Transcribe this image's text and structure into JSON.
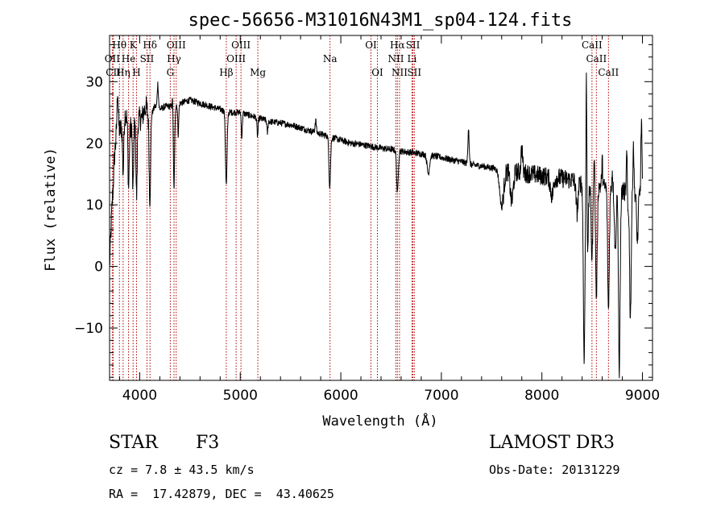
{
  "chart_data": {
    "type": "line",
    "title": "spec-56656-M31016N43M1_sp04-124.fits",
    "xlabel": "Wavelength (Å)",
    "ylabel": "Flux (relative)",
    "xlim": [
      3700,
      9100
    ],
    "ylim": [
      -18.5,
      37.5
    ],
    "x_ticks": [
      4000,
      5000,
      6000,
      7000,
      8000,
      9000
    ],
    "y_ticks": [
      -10,
      0,
      10,
      20,
      30
    ],
    "x_tick_labels": [
      "4000",
      "5000",
      "6000",
      "7000",
      "8000",
      "9000"
    ],
    "y_tick_labels": [
      "−10",
      "0",
      "10",
      "20",
      "30"
    ],
    "spectrum_nodes": [
      [
        3700,
        0
      ],
      [
        3720,
        8
      ],
      [
        3750,
        18
      ],
      [
        3780,
        24
      ],
      [
        3800,
        22
      ],
      [
        3830,
        23
      ],
      [
        3860,
        25
      ],
      [
        3900,
        22
      ],
      [
        3930,
        24
      ],
      [
        3960,
        23
      ],
      [
        3990,
        24
      ],
      [
        4020,
        24
      ],
      [
        4060,
        26
      ],
      [
        4100,
        24
      ],
      [
        4150,
        26
      ],
      [
        4200,
        25.5
      ],
      [
        4260,
        26
      ],
      [
        4330,
        26
      ],
      [
        4400,
        26.5
      ],
      [
        4500,
        27
      ],
      [
        4600,
        26.5
      ],
      [
        4700,
        26
      ],
      [
        4800,
        25.5
      ],
      [
        4900,
        25
      ],
      [
        5000,
        25
      ],
      [
        5100,
        24.5
      ],
      [
        5200,
        24
      ],
      [
        5300,
        23.5
      ],
      [
        5400,
        23.3
      ],
      [
        5500,
        23
      ],
      [
        5600,
        22.5
      ],
      [
        5700,
        22
      ],
      [
        5800,
        21.5
      ],
      [
        5900,
        21
      ],
      [
        6000,
        20.5
      ],
      [
        6100,
        20
      ],
      [
        6200,
        19.8
      ],
      [
        6300,
        19.5
      ],
      [
        6400,
        19.2
      ],
      [
        6500,
        19
      ],
      [
        6600,
        18.7
      ],
      [
        6700,
        18.5
      ],
      [
        6800,
        18.3
      ],
      [
        6900,
        18
      ],
      [
        7000,
        17.7
      ],
      [
        7100,
        17.3
      ],
      [
        7200,
        17
      ],
      [
        7300,
        16.5
      ],
      [
        7400,
        16.3
      ],
      [
        7500,
        16
      ],
      [
        7600,
        15.8
      ],
      [
        7700,
        15.5
      ],
      [
        7800,
        15.2
      ],
      [
        7900,
        15
      ],
      [
        8000,
        14.7
      ],
      [
        8100,
        14.5
      ],
      [
        8200,
        14.3
      ],
      [
        8300,
        14
      ],
      [
        8400,
        13.5
      ],
      [
        8500,
        13.2
      ],
      [
        8600,
        13
      ],
      [
        8700,
        12.5
      ],
      [
        8800,
        12.2
      ],
      [
        8900,
        12
      ],
      [
        9000,
        12
      ]
    ],
    "absorption_features": [
      [
        3835,
        6,
        8
      ],
      [
        3889,
        6,
        10
      ],
      [
        3933,
        6,
        12
      ],
      [
        3969,
        6,
        12
      ],
      [
        4101,
        7,
        14
      ],
      [
        4340,
        7,
        14
      ],
      [
        4383,
        5,
        5
      ],
      [
        4861,
        8,
        12
      ],
      [
        5015,
        5,
        4
      ],
      [
        5172,
        6,
        3
      ],
      [
        5270,
        5,
        2
      ],
      [
        5890,
        8,
        8
      ],
      [
        6563,
        8,
        7
      ],
      [
        6870,
        12,
        3
      ],
      [
        7600,
        20,
        6
      ],
      [
        7700,
        15,
        5
      ],
      [
        8100,
        15,
        3
      ],
      [
        8350,
        10,
        5
      ],
      [
        8420,
        8,
        28
      ],
      [
        8455,
        8,
        10
      ],
      [
        8498,
        8,
        12
      ],
      [
        8542,
        8,
        18
      ],
      [
        8662,
        8,
        20
      ],
      [
        8730,
        8,
        10
      ],
      [
        8770,
        8,
        30
      ],
      [
        8850,
        8,
        5
      ],
      [
        8880,
        8,
        20
      ],
      [
        8950,
        8,
        8
      ]
    ],
    "emission_spikes": [
      [
        3780,
        5,
        5
      ],
      [
        4180,
        6,
        4
      ],
      [
        4330,
        5,
        4
      ],
      [
        5750,
        6,
        2
      ],
      [
        7270,
        6,
        6
      ],
      [
        7800,
        8,
        4
      ],
      [
        8443,
        4,
        21
      ],
      [
        8520,
        5,
        6
      ],
      [
        8600,
        5,
        4
      ],
      [
        8700,
        5,
        3
      ],
      [
        8845,
        5,
        10
      ],
      [
        8910,
        5,
        8
      ],
      [
        8990,
        5,
        12
      ]
    ],
    "spectral_lines": [
      {
        "name": "Hθ",
        "wave": 3798,
        "row": 1
      },
      {
        "name": "OII",
        "wave": 3727,
        "row": 2
      },
      {
        "name": "CII",
        "wave": 3737,
        "row": 3
      },
      {
        "name": "Hη",
        "wave": 3835,
        "row": 3
      },
      {
        "name": "He",
        "wave": 3889,
        "row": 2
      },
      {
        "name": "K",
        "wave": 3934,
        "row": 1
      },
      {
        "name": "SII",
        "wave": 4072,
        "row": 2
      },
      {
        "name": "H",
        "wave": 3968,
        "row": 3
      },
      {
        "name": "Hδ",
        "wave": 4102,
        "row": 1
      },
      {
        "name": "OIII",
        "wave": 4363,
        "row": 1
      },
      {
        "name": "Hγ",
        "wave": 4341,
        "row": 2
      },
      {
        "name": "G",
        "wave": 4304,
        "row": 3
      },
      {
        "name": "OIII",
        "wave": 5007,
        "row": 1
      },
      {
        "name": "OIII",
        "wave": 4959,
        "row": 2
      },
      {
        "name": "Hβ",
        "wave": 4861,
        "row": 3
      },
      {
        "name": "Mg",
        "wave": 5175,
        "row": 3
      },
      {
        "name": "Na",
        "wave": 5893,
        "row": 2
      },
      {
        "name": "OI",
        "wave": 6300,
        "row": 1
      },
      {
        "name": "OI",
        "wave": 6364,
        "row": 3
      },
      {
        "name": "Hα",
        "wave": 6563,
        "row": 1
      },
      {
        "name": "NII",
        "wave": 6548,
        "row": 2
      },
      {
        "name": "NII",
        "wave": 6584,
        "row": 3
      },
      {
        "name": "SII",
        "wave": 6717,
        "row": 1
      },
      {
        "name": "Li",
        "wave": 6708,
        "row": 2
      },
      {
        "name": "SII",
        "wave": 6731,
        "row": 3
      },
      {
        "name": "CaII",
        "wave": 8498,
        "row": 1
      },
      {
        "name": "CaII",
        "wave": 8542,
        "row": 2
      },
      {
        "name": "CaII",
        "wave": 8662,
        "row": 3
      }
    ],
    "line_color": "#000000",
    "marker_color": "#b00000"
  },
  "info": {
    "obj_class": "STAR",
    "subclass": "F3",
    "survey": "LAMOST DR3",
    "cz": "cz = 7.8 ± 43.5 km/s",
    "obs_date": "Obs-Date: 20131229",
    "coords": "RA =  17.42879, DEC =  43.40625"
  }
}
